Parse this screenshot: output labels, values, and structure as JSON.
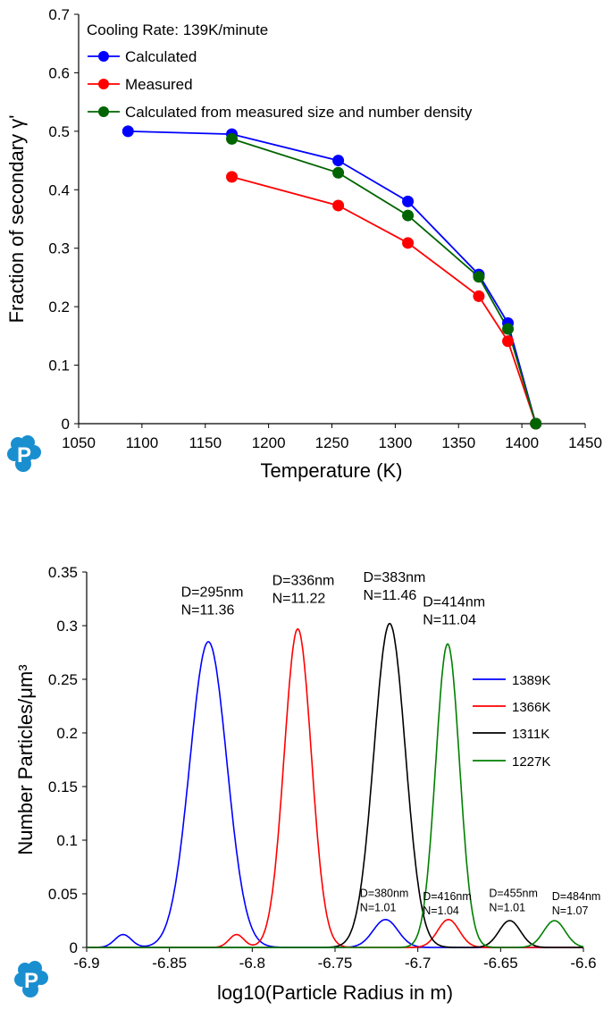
{
  "charts": [
    {
      "type": "line",
      "title": "Cooling Rate: 139K/minute",
      "xlabel": "Temperature (K)",
      "ylabel": "Fraction of secondary γ'",
      "xlim": [
        1050,
        1450
      ],
      "ylim": [
        0,
        0.7
      ],
      "xticks": [
        1050,
        1100,
        1150,
        1200,
        1250,
        1300,
        1350,
        1400,
        1450
      ],
      "yticks": [
        0,
        0.1,
        0.2,
        0.3,
        0.4,
        0.5,
        0.6,
        0.7
      ],
      "xtick_labels": [
        "1050",
        "1100",
        "1150",
        "1200",
        "1250",
        "1300",
        "1350",
        "1400",
        "1450"
      ],
      "ytick_labels": [
        "0",
        "0.1",
        "0.2",
        "0.3",
        "0.4",
        "0.5",
        "0.6",
        "0.7"
      ],
      "legend_position": "top-left",
      "grid": false,
      "series": [
        {
          "name": "Calculated",
          "color": "#0000ff",
          "x": [
            1089,
            1171,
            1255,
            1310,
            1366,
            1389,
            1411
          ],
          "y": [
            0.5,
            0.495,
            0.45,
            0.38,
            0.255,
            0.172,
            0
          ]
        },
        {
          "name": "Measured",
          "color": "#ff0000",
          "x": [
            1171,
            1255,
            1310,
            1366,
            1389,
            1411
          ],
          "y": [
            0.422,
            0.373,
            0.309,
            0.218,
            0.141,
            0
          ]
        },
        {
          "name": "Calculated from measured size and number density",
          "color": "#006400",
          "x": [
            1171,
            1255,
            1310,
            1366,
            1389,
            1411
          ],
          "y": [
            0.487,
            0.429,
            0.356,
            0.251,
            0.162,
            0
          ]
        }
      ]
    },
    {
      "type": "line",
      "xlabel": "log10(Particle Radius in m)",
      "ylabel": "Number Particles/μm³",
      "xlim": [
        -6.9,
        -6.6
      ],
      "ylim": [
        0,
        0.35
      ],
      "xticks": [
        -6.9,
        -6.85,
        -6.8,
        -6.75,
        -6.7,
        -6.65,
        -6.6
      ],
      "yticks": [
        0,
        0.05,
        0.1,
        0.15,
        0.2,
        0.25,
        0.3,
        0.35
      ],
      "xtick_labels": [
        "-6.9",
        "-6.85",
        "-6.8",
        "-6.75",
        "-6.7",
        "-6.65",
        "-6.6"
      ],
      "ytick_labels": [
        "0",
        "0.05",
        "0.1",
        "0.15",
        "0.2",
        "0.25",
        "0.3",
        "0.35"
      ],
      "legend_position": "right",
      "grid": false,
      "series": [
        {
          "name": "1389K",
          "color": "#0000ff",
          "peaks": [
            {
              "center": -6.8265,
              "height": 0.285,
              "sigma": 0.0112
            },
            {
              "center": -6.878,
              "height": 0.012,
              "sigma": 0.005
            },
            {
              "center": -6.7195,
              "height": 0.026,
              "sigma": 0.0075
            }
          ]
        },
        {
          "name": "1366K",
          "color": "#ff0000",
          "peaks": [
            {
              "center": -6.7725,
              "height": 0.297,
              "sigma": 0.0082
            },
            {
              "center": -6.8095,
              "height": 0.012,
              "sigma": 0.0045
            },
            {
              "center": -6.6815,
              "height": 0.026,
              "sigma": 0.0065
            }
          ]
        },
        {
          "name": "1311K",
          "color": "#000000",
          "peaks": [
            {
              "center": -6.717,
              "height": 0.302,
              "sigma": 0.0095
            },
            {
              "center": -6.6445,
              "height": 0.025,
              "sigma": 0.0065
            }
          ]
        },
        {
          "name": "1227K",
          "color": "#008000",
          "peaks": [
            {
              "center": -6.682,
              "height": 0.283,
              "sigma": 0.0072
            },
            {
              "center": -6.6175,
              "height": 0.025,
              "sigma": 0.0065
            }
          ]
        }
      ],
      "annotations": [
        {
          "text": [
            "D=295nm",
            "N=11.36"
          ],
          "x": -6.843,
          "y": 0.327,
          "size": "large"
        },
        {
          "text": [
            "D=336nm",
            "N=11.22"
          ],
          "x": -6.788,
          "y": 0.338,
          "size": "large"
        },
        {
          "text": [
            "D=383nm",
            "N=11.46"
          ],
          "x": -6.733,
          "y": 0.341,
          "size": "large"
        },
        {
          "text": [
            "D=414nm",
            "N=11.04"
          ],
          "x": -6.697,
          "y": 0.318,
          "size": "large"
        },
        {
          "text": [
            "D=380nm",
            "N=1.01"
          ],
          "x": -6.735,
          "y": 0.047,
          "size": "small"
        },
        {
          "text": [
            "D=416nm",
            "N=1.04"
          ],
          "x": -6.697,
          "y": 0.044,
          "size": "small"
        },
        {
          "text": [
            "D=455nm",
            "N=1.01"
          ],
          "x": -6.657,
          "y": 0.047,
          "size": "small"
        },
        {
          "text": [
            "D=484nm",
            "N=1.07"
          ],
          "x": -6.619,
          "y": 0.044,
          "size": "small"
        }
      ]
    }
  ],
  "logo": {
    "icon": "pandat-p-logo-icon",
    "color": "#1a8fd0"
  }
}
